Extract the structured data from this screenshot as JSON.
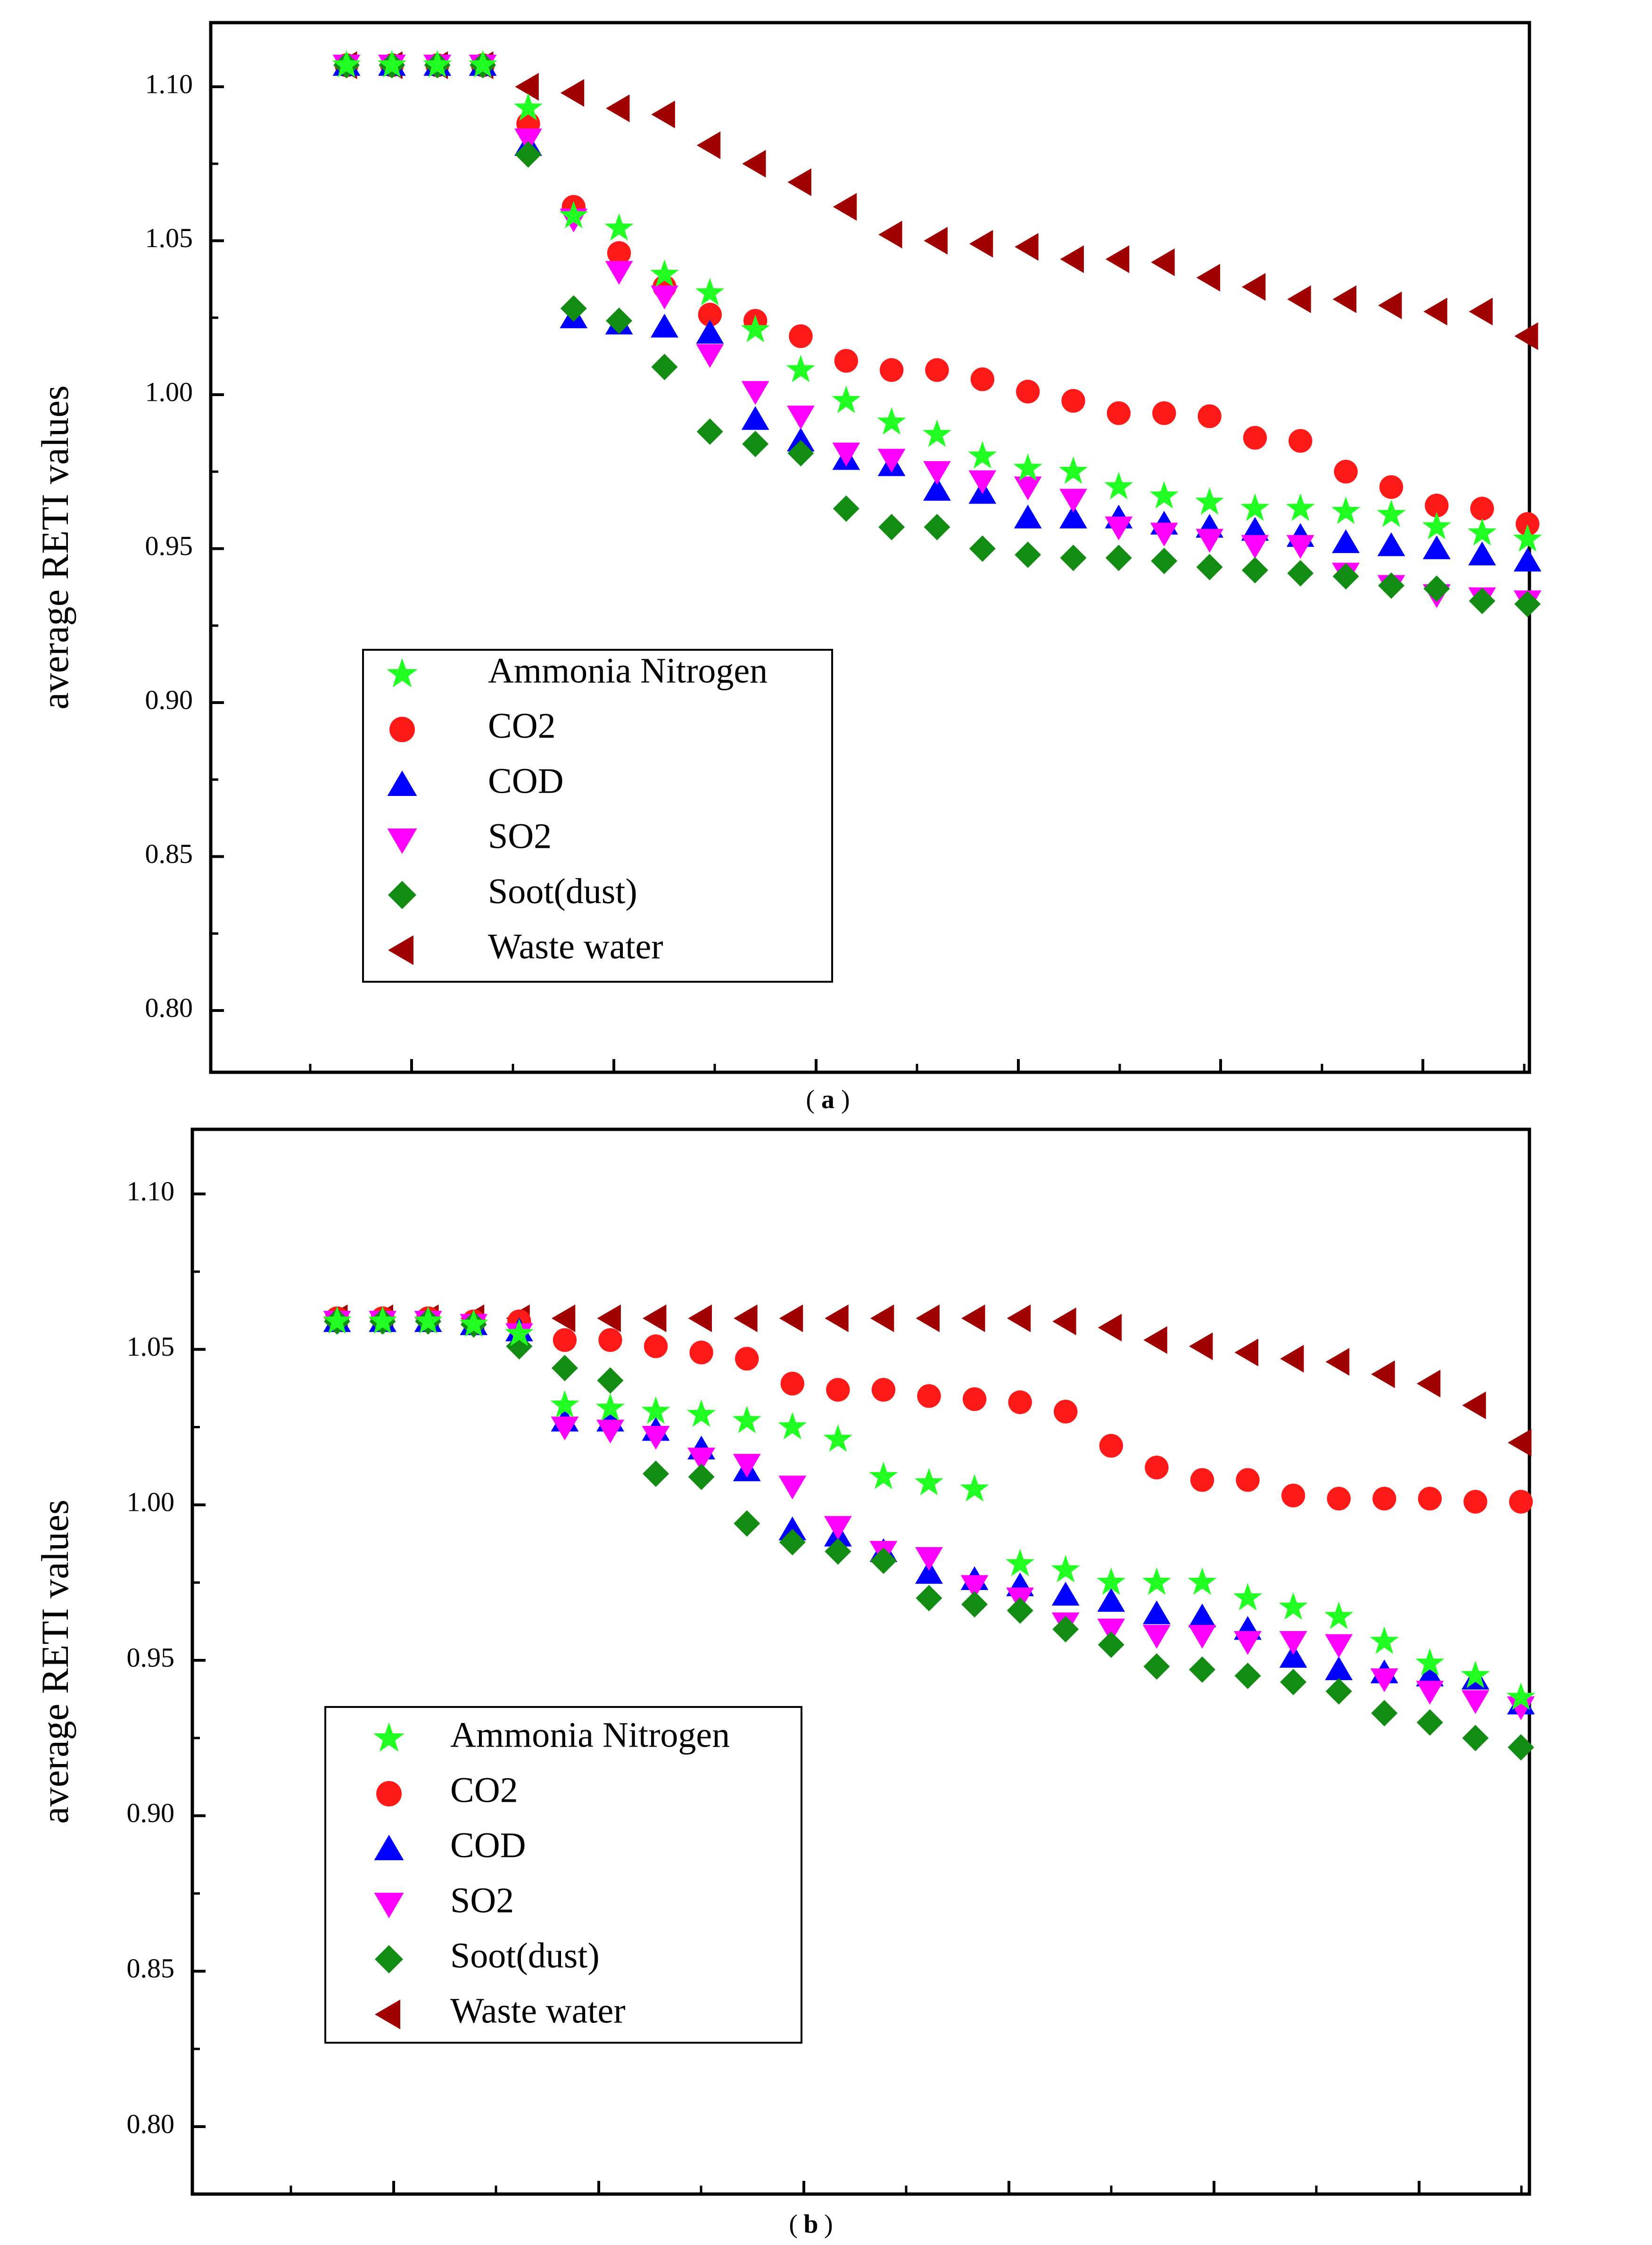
{
  "chart_data": [
    {
      "panel_label": "a",
      "type": "scatter",
      "ylabel": "average RETI values",
      "xlabel": "",
      "ylim": [
        0.78,
        1.12
      ],
      "yticks": [
        0.8,
        0.85,
        0.9,
        0.95,
        1.0,
        1.05,
        1.1
      ],
      "ytick_labels": [
        "0.80",
        "0.85",
        "0.90",
        "0.95",
        "1.00",
        "1.05",
        "1.10"
      ],
      "xlim": [
        0,
        29
      ],
      "x": [
        1,
        2,
        3,
        4,
        5,
        6,
        7,
        8,
        9,
        10,
        11,
        12,
        13,
        14,
        15,
        16,
        17,
        18,
        19,
        20,
        21,
        22,
        23,
        24,
        25,
        26,
        27
      ],
      "legend_position": "lower-left",
      "series": [
        {
          "name": "Ammonia Nitrogen",
          "marker": "star",
          "color": "#22ff22",
          "values": [
            1.107,
            1.107,
            1.107,
            1.107,
            1.093,
            1.058,
            1.054,
            1.039,
            1.033,
            1.021,
            1.008,
            0.998,
            0.991,
            0.987,
            0.98,
            0.976,
            0.975,
            0.97,
            0.967,
            0.965,
            0.963,
            0.963,
            0.962,
            0.961,
            0.957,
            0.955,
            0.953
          ]
        },
        {
          "name": "CO2",
          "marker": "circle",
          "color": "#ff1a1a",
          "values": [
            1.107,
            1.107,
            1.107,
            1.107,
            1.088,
            1.061,
            1.046,
            1.035,
            1.026,
            1.024,
            1.019,
            1.011,
            1.008,
            1.008,
            1.005,
            1.001,
            0.998,
            0.994,
            0.994,
            0.993,
            0.986,
            0.985,
            0.975,
            0.97,
            0.964,
            0.963,
            0.958
          ]
        },
        {
          "name": "COD",
          "marker": "triangle-up",
          "color": "#0000ff",
          "values": [
            1.107,
            1.107,
            1.107,
            1.107,
            1.081,
            1.025,
            1.023,
            1.022,
            1.02,
            0.992,
            0.985,
            0.979,
            0.977,
            0.969,
            0.968,
            0.96,
            0.96,
            0.96,
            0.958,
            0.957,
            0.956,
            0.954,
            0.952,
            0.951,
            0.95,
            0.948,
            0.946
          ]
        },
        {
          "name": "SO2",
          "marker": "triangle-down",
          "color": "#ff00ff",
          "values": [
            1.107,
            1.107,
            1.107,
            1.107,
            1.083,
            1.057,
            1.04,
            1.032,
            1.013,
            1.001,
            0.993,
            0.981,
            0.979,
            0.975,
            0.972,
            0.97,
            0.966,
            0.957,
            0.955,
            0.953,
            0.951,
            0.951,
            0.942,
            0.938,
            0.935,
            0.934,
            0.933
          ]
        },
        {
          "name": "Soot(dust)",
          "marker": "diamond",
          "color": "#128c12",
          "values": [
            1.107,
            1.107,
            1.107,
            1.107,
            1.078,
            1.028,
            1.024,
            1.009,
            0.988,
            0.984,
            0.981,
            0.963,
            0.957,
            0.957,
            0.95,
            0.948,
            0.947,
            0.947,
            0.946,
            0.944,
            0.943,
            0.942,
            0.941,
            0.938,
            0.937,
            0.933,
            0.932
          ]
        },
        {
          "name": "Waste water",
          "marker": "triangle-left",
          "color": "#a00000",
          "values": [
            1.107,
            1.107,
            1.107,
            1.107,
            1.1,
            1.098,
            1.093,
            1.091,
            1.081,
            1.075,
            1.069,
            1.061,
            1.052,
            1.05,
            1.049,
            1.048,
            1.044,
            1.044,
            1.043,
            1.038,
            1.035,
            1.031,
            1.031,
            1.029,
            1.027,
            1.027,
            1.019
          ]
        }
      ]
    },
    {
      "panel_label": "b",
      "type": "scatter",
      "ylabel": "average RETI values",
      "xlabel": "",
      "ylim": [
        0.78,
        1.12
      ],
      "yticks": [
        0.8,
        0.85,
        0.9,
        0.95,
        1.0,
        1.05,
        1.1
      ],
      "ytick_labels": [
        "0.80",
        "0.85",
        "0.90",
        "0.95",
        "1.00",
        "1.05",
        "1.10"
      ],
      "xlim": [
        0,
        29
      ],
      "x": [
        1,
        2,
        3,
        4,
        5,
        6,
        7,
        8,
        9,
        10,
        11,
        12,
        13,
        14,
        15,
        16,
        17,
        18,
        19,
        20,
        21,
        22,
        23,
        24,
        25,
        26,
        27
      ],
      "legend_position": "lower-left",
      "series": [
        {
          "name": "Ammonia Nitrogen",
          "marker": "star",
          "color": "#22ff22",
          "values": [
            1.059,
            1.059,
            1.059,
            1.058,
            1.055,
            1.032,
            1.031,
            1.03,
            1.029,
            1.027,
            1.025,
            1.021,
            1.009,
            1.007,
            1.005,
            0.981,
            0.979,
            0.975,
            0.975,
            0.975,
            0.97,
            0.967,
            0.964,
            0.956,
            0.949,
            0.945,
            0.938
          ]
        },
        {
          "name": "CO2",
          "marker": "circle",
          "color": "#ff1a1a",
          "values": [
            1.06,
            1.06,
            1.06,
            1.059,
            1.059,
            1.053,
            1.053,
            1.051,
            1.049,
            1.047,
            1.039,
            1.037,
            1.037,
            1.035,
            1.034,
            1.033,
            1.03,
            1.019,
            1.012,
            1.008,
            1.008,
            1.003,
            1.002,
            1.002,
            1.002,
            1.001,
            1.001
          ]
        },
        {
          "name": "COD",
          "marker": "triangle-up",
          "color": "#0000ff",
          "values": [
            1.059,
            1.059,
            1.059,
            1.058,
            1.056,
            1.027,
            1.027,
            1.024,
            1.018,
            1.011,
            0.992,
            0.99,
            0.985,
            0.978,
            0.976,
            0.974,
            0.971,
            0.969,
            0.965,
            0.964,
            0.96,
            0.951,
            0.947,
            0.946,
            0.945,
            0.944,
            0.936
          ]
        },
        {
          "name": "SO2",
          "marker": "triangle-down",
          "color": "#ff00ff",
          "values": [
            1.059,
            1.059,
            1.059,
            1.058,
            1.055,
            1.025,
            1.024,
            1.022,
            1.015,
            1.013,
            1.006,
            0.993,
            0.985,
            0.983,
            0.974,
            0.97,
            0.962,
            0.96,
            0.958,
            0.958,
            0.956,
            0.956,
            0.955,
            0.944,
            0.94,
            0.937,
            0.935
          ]
        },
        {
          "name": "Soot(dust)",
          "marker": "diamond",
          "color": "#128c12",
          "values": [
            1.059,
            1.059,
            1.059,
            1.058,
            1.051,
            1.044,
            1.04,
            1.01,
            1.009,
            0.994,
            0.988,
            0.985,
            0.982,
            0.97,
            0.968,
            0.966,
            0.96,
            0.955,
            0.948,
            0.947,
            0.945,
            0.943,
            0.94,
            0.933,
            0.93,
            0.925,
            0.922
          ]
        },
        {
          "name": "Waste water",
          "marker": "triangle-left",
          "color": "#a00000",
          "values": [
            1.06,
            1.06,
            1.06,
            1.06,
            1.06,
            1.06,
            1.06,
            1.06,
            1.06,
            1.06,
            1.06,
            1.06,
            1.06,
            1.06,
            1.06,
            1.06,
            1.059,
            1.057,
            1.053,
            1.051,
            1.049,
            1.047,
            1.046,
            1.042,
            1.039,
            1.032,
            1.02
          ]
        }
      ]
    }
  ]
}
